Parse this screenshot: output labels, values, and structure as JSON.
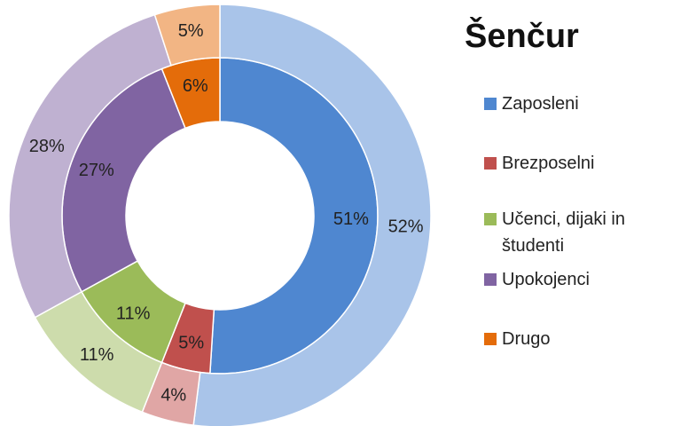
{
  "chart_data": {
    "type": "donut",
    "title": "Šenčur",
    "categories": [
      "Zaposleni",
      "Brezposelni",
      "Učenci, dijaki in študenti",
      "Upokojenci",
      "Drugo"
    ],
    "colors": [
      "#4f87d0",
      "#c0504d",
      "#9bbb59",
      "#8064a2",
      "#e46c0a"
    ],
    "series": [
      {
        "values": [
          51,
          5,
          11,
          27,
          6
        ],
        "value_labels": [
          "51%",
          "5%",
          "11%",
          "27%",
          "6%"
        ],
        "colors": [
          "#4f87d0",
          "#c0504d",
          "#9bbb59",
          "#8064a2",
          "#e46c0a"
        ]
      },
      {
        "values": [
          52,
          4,
          11,
          28,
          5
        ],
        "value_labels": [
          "52%",
          "4%",
          "11%",
          "28%",
          "5%"
        ],
        "colors": [
          "#a9c4e9",
          "#e0a6a5",
          "#cddcac",
          "#bfb1d1",
          "#f2b584"
        ]
      }
    ],
    "legend": "right"
  }
}
